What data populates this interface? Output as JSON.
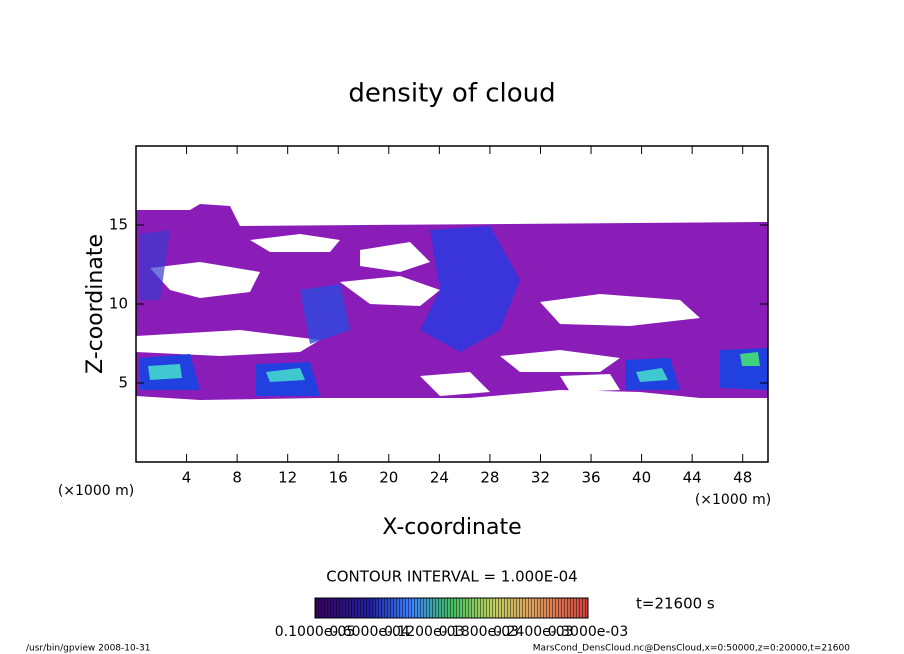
{
  "chart_data": {
    "type": "contour",
    "title": "density of cloud",
    "x_label": "X-coordinate",
    "y_label": "Z-coordinate",
    "x_unit": "(×1000 m)",
    "x_unit_right": "(×1000 m)",
    "xlim": [
      0,
      50
    ],
    "xticks": [
      4,
      8,
      12,
      16,
      20,
      24,
      28,
      32,
      36,
      40,
      44,
      48
    ],
    "ylim": [
      0,
      20
    ],
    "yticks": [
      5,
      10,
      15
    ],
    "contour_interval": "CONTOUR INTERVAL = 1.000E-04",
    "time": "t=21600 s",
    "colorbar_labels": [
      "0.1000e-05",
      "0.6000e-04",
      "0.1200e-03",
      "0.1800e-03",
      "0.2400e-03",
      "0.3000e-03"
    ],
    "footer_left": "/usr/bin/gpview   2008-10-31",
    "footer_right": "MarsCond_DensCloud.nc@DensCloud,x=0:50000,z=0:20000,t=21600"
  }
}
